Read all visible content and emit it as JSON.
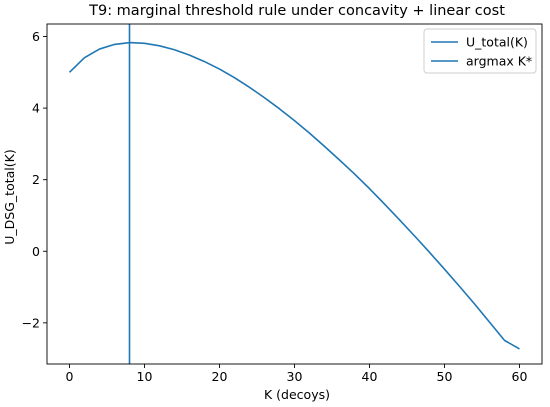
{
  "chart_data": {
    "type": "line",
    "title": "T9: marginal threshold rule under concavity + linear cost",
    "xlabel": "K (decoys)",
    "ylabel": "U_DSG_total(K)",
    "xlim": [
      -3,
      63
    ],
    "ylim": [
      -3.15,
      6.35
    ],
    "xticks": [
      0,
      10,
      20,
      30,
      40,
      50,
      60
    ],
    "yticks": [
      -2,
      0,
      2,
      4,
      6
    ],
    "grid": false,
    "legend_position": "top-right",
    "colors": {
      "line": "#1f77b4"
    },
    "series": [
      {
        "name": "U_total(K)",
        "type": "line",
        "x": [
          0,
          2,
          4,
          6,
          8,
          10,
          12,
          14,
          16,
          18,
          20,
          22,
          24,
          26,
          28,
          30,
          32,
          34,
          36,
          38,
          40,
          42,
          44,
          46,
          48,
          50,
          52,
          54,
          56,
          58,
          60
        ],
        "y": [
          5.0,
          5.41,
          5.65,
          5.78,
          5.83,
          5.81,
          5.74,
          5.63,
          5.48,
          5.3,
          5.09,
          4.85,
          4.58,
          4.29,
          3.98,
          3.65,
          3.3,
          2.93,
          2.55,
          2.16,
          1.75,
          1.32,
          0.88,
          0.43,
          -0.03,
          -0.5,
          -0.98,
          -1.47,
          -1.98,
          -2.49,
          -2.73
        ]
      },
      {
        "name": "argmax K*",
        "type": "vline",
        "x": 8
      }
    ]
  }
}
